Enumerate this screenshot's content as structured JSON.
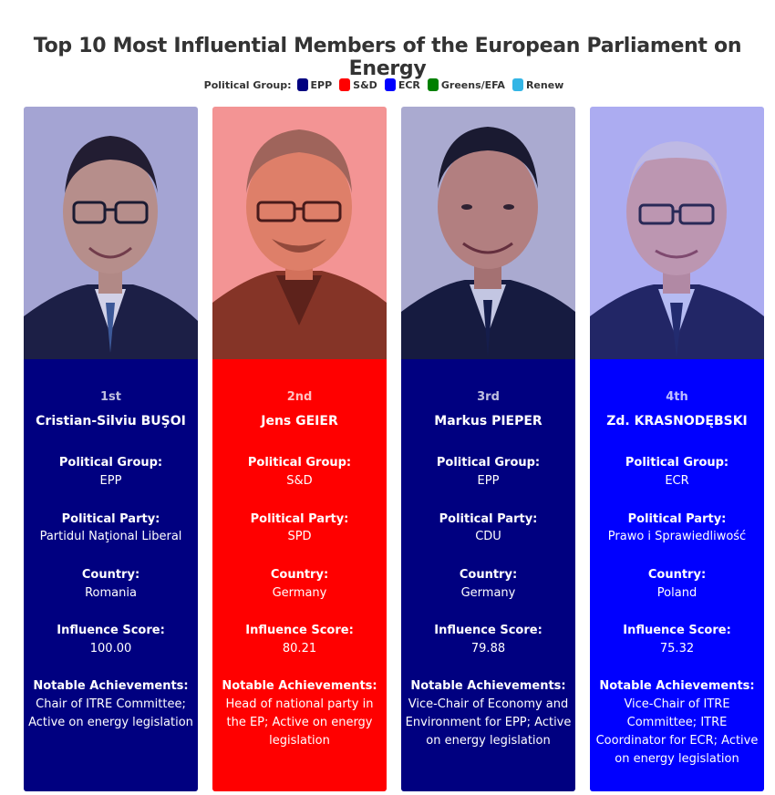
{
  "title": "Top 10 Most Influential Members of the European Parliament on Energy",
  "legend": {
    "label": "Political Group:",
    "items": [
      {
        "name": "EPP",
        "color": "#000080"
      },
      {
        "name": "S&D",
        "color": "#ff0000"
      },
      {
        "name": "ECR",
        "color": "#0000ff"
      },
      {
        "name": "Greens/EFA",
        "color": "#008000"
      },
      {
        "name": "Renew",
        "color": "#33b5e5"
      }
    ]
  },
  "labels": {
    "group": "Political Group:",
    "party": "Political Party:",
    "country": "Country:",
    "score": "Influence Score:",
    "achievements": "Notable Achievements:"
  },
  "members": [
    {
      "rank": "1st",
      "name": "Cristian-Silviu BUŞOI",
      "group": "EPP",
      "party": "Partidul Naţional Liberal",
      "country": "Romania",
      "score": "100.00",
      "achievements": "Chair of ITRE Committee; Active on energy legislation",
      "color": "#000080"
    },
    {
      "rank": "2nd",
      "name": "Jens GEIER",
      "group": "S&D",
      "party": "SPD",
      "country": "Germany",
      "score": "80.21",
      "achievements": "Head of national party in the EP; Active on energy legislation",
      "color": "#ff0000"
    },
    {
      "rank": "3rd",
      "name": "Markus PIEPER",
      "group": "EPP",
      "party": "CDU",
      "country": "Germany",
      "score": "79.88",
      "achievements": "Vice-Chair of Economy and Environment for EPP; Active on energy legislation",
      "color": "#000080"
    },
    {
      "rank": "4th",
      "name": "Zd. KRASNODĘBSKI",
      "group": "ECR",
      "party": "Prawo i Sprawiedliwość",
      "country": "Poland",
      "score": "75.32",
      "achievements": "Vice-Chair of ITRE Committee; ITRE Coordinator for ECR; Active on energy legislation",
      "color": "#0000ff"
    }
  ]
}
